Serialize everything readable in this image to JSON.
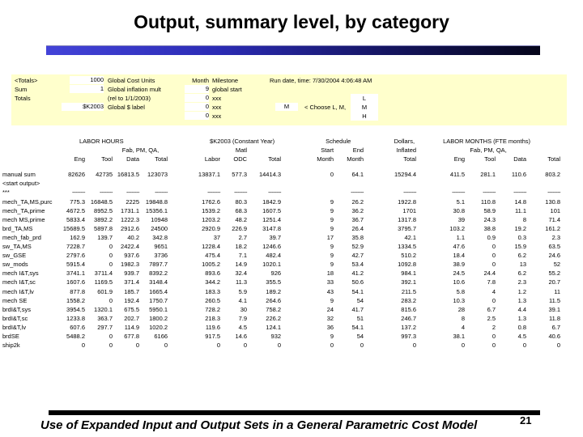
{
  "title": "Output, summary level, by category",
  "footer": {
    "caption": "Use of Expanded Input and Output Sets in a General Parametric Cost Model",
    "page_number": "21"
  },
  "panel": {
    "totals_header": "<Totals>",
    "sum_label": "Sum",
    "totals_label": "Totals",
    "cost_units_value": "1000",
    "cost_units_label": "Global Cost Units",
    "inflation_value": "1",
    "inflation_label": "Global inflation mult",
    "inflation_note": "(rel to 1/1/2003)",
    "dollar_value": "$K2003",
    "dollar_label": "Global $ label",
    "month_header": "Month",
    "milestone_header": "Milestone",
    "month_values": [
      "9",
      "0",
      "0",
      "0"
    ],
    "milestone_values": [
      "global start",
      "xxx",
      "xxx",
      "xxx"
    ],
    "run_datetime": "Run date, time: 7/30/2004 4:06:48 AM",
    "choose_value": "M",
    "choose_label": "< Choose L, M,",
    "choose_options": [
      "L",
      "M",
      "H"
    ]
  },
  "table": {
    "groups": {
      "labor_hours": "LABOR HOURS",
      "k2003": "$K2003  (Constant Year)",
      "schedule": "Schedule",
      "dollars": "Dollars,",
      "labor_months": "LABOR MONTHS (FTE months)",
      "fab_pm_qa_left": "Fab, PM, QA,",
      "matl": "Matl",
      "start": "Start",
      "end": "End",
      "inflated": "Inflated",
      "fab_pm_qa_right": "Fab, PM, QA,"
    },
    "col_headers": [
      "Eng",
      "Tool",
      "Data",
      "Total",
      "Labor",
      "ODC",
      "Total",
      "Month",
      "Month",
      "Total",
      "Eng",
      "Tool",
      "Data",
      "Total"
    ],
    "rows": [
      {
        "label": "manual sum",
        "v": [
          "82626",
          "42735",
          "16813.5",
          "123073",
          "13837.1",
          "577.3",
          "14414.3",
          "0",
          "64.1",
          "15294.4",
          "411.5",
          "281.1",
          "110.6",
          "803.2"
        ]
      },
      {
        "label": "<start output>",
        "v": [
          "",
          "",
          "",
          "",
          "",
          "",
          "",
          "",
          "",
          "",
          "",
          "",
          "",
          ""
        ]
      },
      {
        "label": "***",
        "v": [
          "--------",
          "--------",
          "--------",
          "--------",
          "--------",
          "--------",
          "--------",
          "",
          "--------",
          "--------",
          "--------",
          "--------",
          "--------",
          "--------"
        ]
      },
      {
        "label": "mech_TA,MS,purc",
        "v": [
          "775.3",
          "16848.5",
          "2225",
          "19848.8",
          "1762.6",
          "80.3",
          "1842.9",
          "9",
          "26.2",
          "1922.8",
          "5.1",
          "110.8",
          "14.8",
          "130.8"
        ]
      },
      {
        "label": "mech_TA,prime",
        "v": [
          "4672.5",
          "8952.5",
          "1731.1",
          "15356.1",
          "1539.2",
          "68.3",
          "1607.5",
          "9",
          "36.2",
          "1701",
          "30.8",
          "58.9",
          "11.1",
          "101"
        ]
      },
      {
        "label": "mech MS,prime",
        "v": [
          "5833.4",
          "3892.2",
          "1222.3",
          "10948",
          "1203.2",
          "48.2",
          "1251.4",
          "9",
          "36.7",
          "1317.8",
          "39",
          "24.3",
          "8",
          "71.4"
        ]
      },
      {
        "label": "brd_TA,MS",
        "v": [
          "15689.5",
          "5897.8",
          "2912.6",
          "24500",
          "2920.9",
          "226.9",
          "3147.8",
          "9",
          "26.4",
          "3795.7",
          "103.2",
          "38.8",
          "19.2",
          "161.2"
        ]
      },
      {
        "label": "mech_fab_prd",
        "v": [
          "162.9",
          "139.7",
          "40.2",
          "342.8",
          "37",
          "2.7",
          "39.7",
          "17",
          "35.8",
          "42.1",
          "1.1",
          "0.9",
          "0.3",
          "2.3"
        ]
      },
      {
        "label": "sw_TA,MS",
        "v": [
          "7228.7",
          "0",
          "2422.4",
          "9651",
          "1228.4",
          "18.2",
          "1246.6",
          "9",
          "52.9",
          "1334.5",
          "47.6",
          "0",
          "15.9",
          "63.5"
        ]
      },
      {
        "label": "sw_GSE",
        "v": [
          "2797.6",
          "0",
          "937.6",
          "3736",
          "475.4",
          "7.1",
          "482.4",
          "9",
          "42.7",
          "510.2",
          "18.4",
          "0",
          "6.2",
          "24.6"
        ]
      },
      {
        "label": "sw_mods",
        "v": [
          "5915.4",
          "0",
          "1982.3",
          "7897.7",
          "1005.2",
          "14.9",
          "1020.1",
          "9",
          "53.4",
          "1092.8",
          "38.9",
          "0",
          "13",
          "52"
        ]
      },
      {
        "label": "mech I&T,sys",
        "v": [
          "3741.1",
          "3711.4",
          "939.7",
          "8392.2",
          "893.6",
          "32.4",
          "926",
          "18",
          "41.2",
          "984.1",
          "24.5",
          "24.4",
          "6.2",
          "55.2"
        ]
      },
      {
        "label": "mech I&T,sc",
        "v": [
          "1607.6",
          "1169.5",
          "371.4",
          "3148.4",
          "344.2",
          "11.3",
          "355.5",
          "33",
          "50.6",
          "392.1",
          "10.6",
          "7.8",
          "2.3",
          "20.7"
        ]
      },
      {
        "label": "mech I&T,lv",
        "v": [
          "877.8",
          "601.9",
          "185.7",
          "1665.4",
          "183.3",
          "5.9",
          "189.2",
          "43",
          "54.1",
          "211.5",
          "5.8",
          "4",
          "1.2",
          "11"
        ]
      },
      {
        "label": "mech SE",
        "v": [
          "1558.2",
          "0",
          "192.4",
          "1750.7",
          "260.5",
          "4.1",
          "264.6",
          "9",
          "54",
          "283.2",
          "10.3",
          "0",
          "1.3",
          "11.5"
        ]
      },
      {
        "label": "brdI&T,sys",
        "v": [
          "3954.5",
          "1320.1",
          "675.5",
          "5950.1",
          "728.2",
          "30",
          "758.2",
          "24",
          "41.7",
          "815.6",
          "28",
          "6.7",
          "4.4",
          "39.1"
        ]
      },
      {
        "label": "brdI&T,sc",
        "v": [
          "1233.8",
          "363.7",
          "202.7",
          "1800.2",
          "218.3",
          "7.9",
          "226.2",
          "32",
          "51",
          "246.7",
          "8",
          "2.5",
          "1.3",
          "11.8"
        ]
      },
      {
        "label": "brdI&T,lv",
        "v": [
          "607.6",
          "297.7",
          "114.9",
          "1020.2",
          "119.6",
          "4.5",
          "124.1",
          "36",
          "54.1",
          "137.2",
          "4",
          "2",
          "0.8",
          "6.7"
        ]
      },
      {
        "label": "brdSE",
        "v": [
          "5488.2",
          "0",
          "677.8",
          "6166",
          "917.5",
          "14.6",
          "932",
          "9",
          "54",
          "997.3",
          "38.1",
          "0",
          "4.5",
          "40.6"
        ]
      },
      {
        "label": "ship2k",
        "v": [
          "0",
          "0",
          "0",
          "0",
          "0",
          "0",
          "0",
          "0",
          "0",
          "0",
          "0",
          "0",
          "0",
          "0"
        ]
      }
    ]
  }
}
